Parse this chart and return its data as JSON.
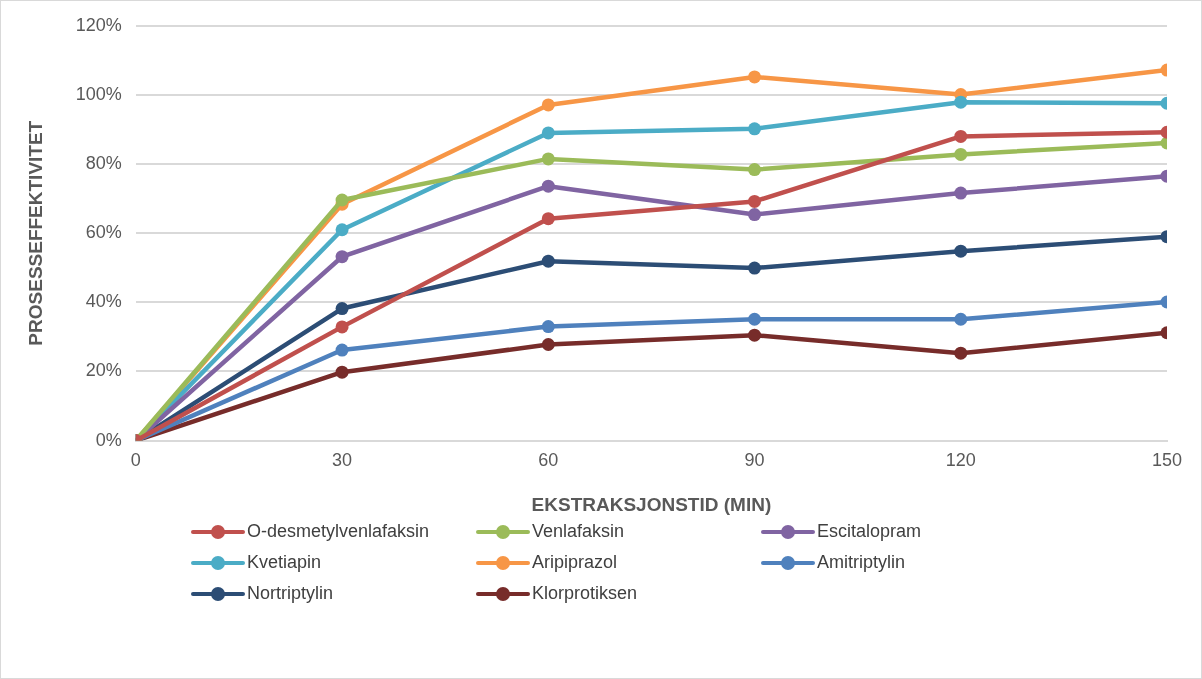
{
  "chart_data": {
    "type": "line",
    "xlabel": "EKSTRAKSJONSTID (MIN)",
    "ylabel": "PROSESSEFFEKTIVITET",
    "x": [
      0,
      30,
      60,
      90,
      120,
      150
    ],
    "xlim": [
      0,
      150
    ],
    "xticks": [
      0,
      30,
      60,
      90,
      120,
      150
    ],
    "ylim": [
      0,
      120
    ],
    "yticks": [
      {
        "value": 0,
        "label": "0%"
      },
      {
        "value": 20,
        "label": "20%"
      },
      {
        "value": 40,
        "label": "40%"
      },
      {
        "value": 60,
        "label": "60%"
      },
      {
        "value": 80,
        "label": "80%"
      },
      {
        "value": 100,
        "label": "100%"
      },
      {
        "value": 120,
        "label": "120%"
      }
    ],
    "grid": "y",
    "legend": "bottom",
    "marker": "circle",
    "line_style": "solid",
    "series": [
      {
        "name": "O-desmetylvenlafaksin",
        "color": "#c0504d",
        "values": [
          0,
          32.9,
          64.2,
          69.2,
          88.0,
          89.2
        ]
      },
      {
        "name": "Venlafaksin",
        "color": "#9bbb59",
        "values": [
          0,
          69.6,
          81.5,
          78.4,
          82.8,
          86.1
        ]
      },
      {
        "name": "Escitalopram",
        "color": "#8064a2",
        "values": [
          0,
          53.2,
          73.6,
          65.4,
          71.6,
          76.5
        ]
      },
      {
        "name": "Kvetiapin",
        "color": "#4bacc6",
        "values": [
          0,
          61.0,
          89.0,
          90.2,
          97.9,
          97.6
        ]
      },
      {
        "name": "Aripiprazol",
        "color": "#f79646",
        "values": [
          0,
          68.4,
          97.1,
          105.2,
          100.1,
          107.2
        ]
      },
      {
        "name": "Amitriptylin",
        "color": "#4f81bd",
        "values": [
          0,
          26.2,
          33.0,
          35.1,
          35.1,
          40.1
        ]
      },
      {
        "name": "Nortriptylin",
        "color": "#2c4d75",
        "values": [
          0,
          38.2,
          51.9,
          49.9,
          54.8,
          59.0
        ]
      },
      {
        "name": "Klorprotiksen",
        "color": "#772c2a",
        "values": [
          0,
          19.8,
          27.8,
          30.5,
          25.3,
          31.2
        ]
      }
    ]
  }
}
